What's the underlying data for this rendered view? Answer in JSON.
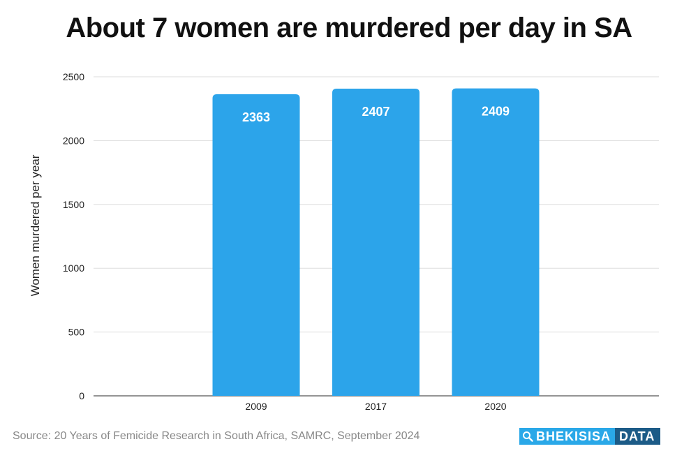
{
  "header": {
    "title": "About 7 women are murdered per day in SA"
  },
  "footer": {
    "source": "Source: 20 Years of Femicide Research in South Africa, SAMRC, September 2024"
  },
  "logo": {
    "left_text": "BHEKISISA",
    "right_text": "DATA",
    "icon": "magnifier-icon"
  },
  "colors": {
    "bar": "#2ca4ea",
    "grid": "#dddddd",
    "axis": "#555555",
    "label": "#ffffff"
  },
  "chart_data": {
    "type": "bar",
    "title": "About 7 women are murdered per day in SA",
    "categories": [
      "2009",
      "2017",
      "2020"
    ],
    "values": [
      2363,
      2407,
      2409
    ],
    "data_labels": [
      "2363",
      "2407",
      "2409"
    ],
    "xlabel": "",
    "ylabel": "Women murdered per year",
    "ylim": [
      0,
      2500
    ],
    "yticks": [
      0,
      500,
      1000,
      1500,
      2000,
      2500
    ],
    "ytick_labels": [
      "0",
      "500",
      "1000",
      "1500",
      "2000",
      "2500"
    ],
    "grid": true,
    "legend": "none"
  }
}
